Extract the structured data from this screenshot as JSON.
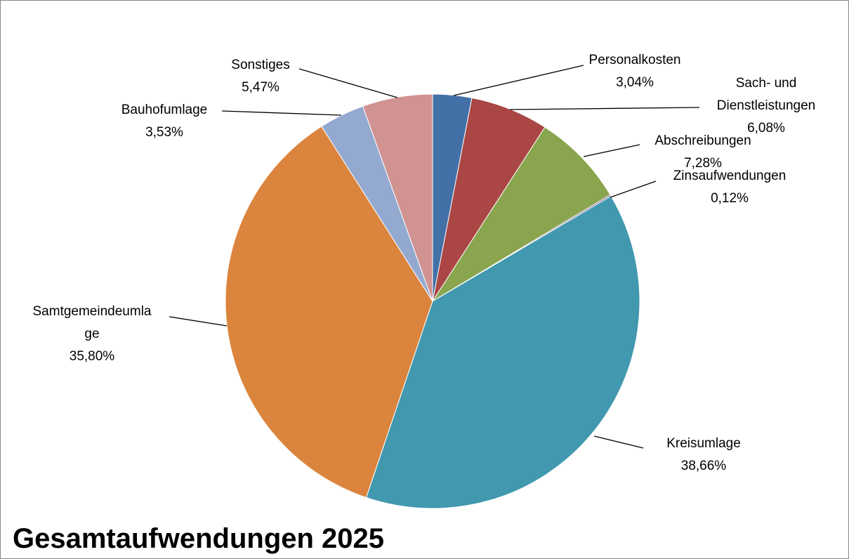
{
  "chart_data": {
    "type": "pie",
    "title": "Gesamtaufwendungen 2025",
    "categories": [
      "Personalkosten",
      "Sach- und Dienstleistungen",
      "Abschreibungen",
      "Zinsaufwendungen",
      "Kreisumlage",
      "Samtgemeindeumlage",
      "Bauhofumlage",
      "Sonstiges"
    ],
    "values": [
      3.04,
      6.08,
      7.28,
      0.12,
      38.66,
      35.8,
      3.53,
      5.47
    ],
    "value_labels": [
      "3,04%",
      "6,08%",
      "7,28%",
      "0,12%",
      "38,66%",
      "35,80%",
      "3,53%",
      "5,47%"
    ],
    "colors": [
      "#4470a8",
      "#aa4644",
      "#89a54e",
      "#71588f",
      "#4198af",
      "#db843d",
      "#93a9cf",
      "#d09392"
    ]
  }
}
